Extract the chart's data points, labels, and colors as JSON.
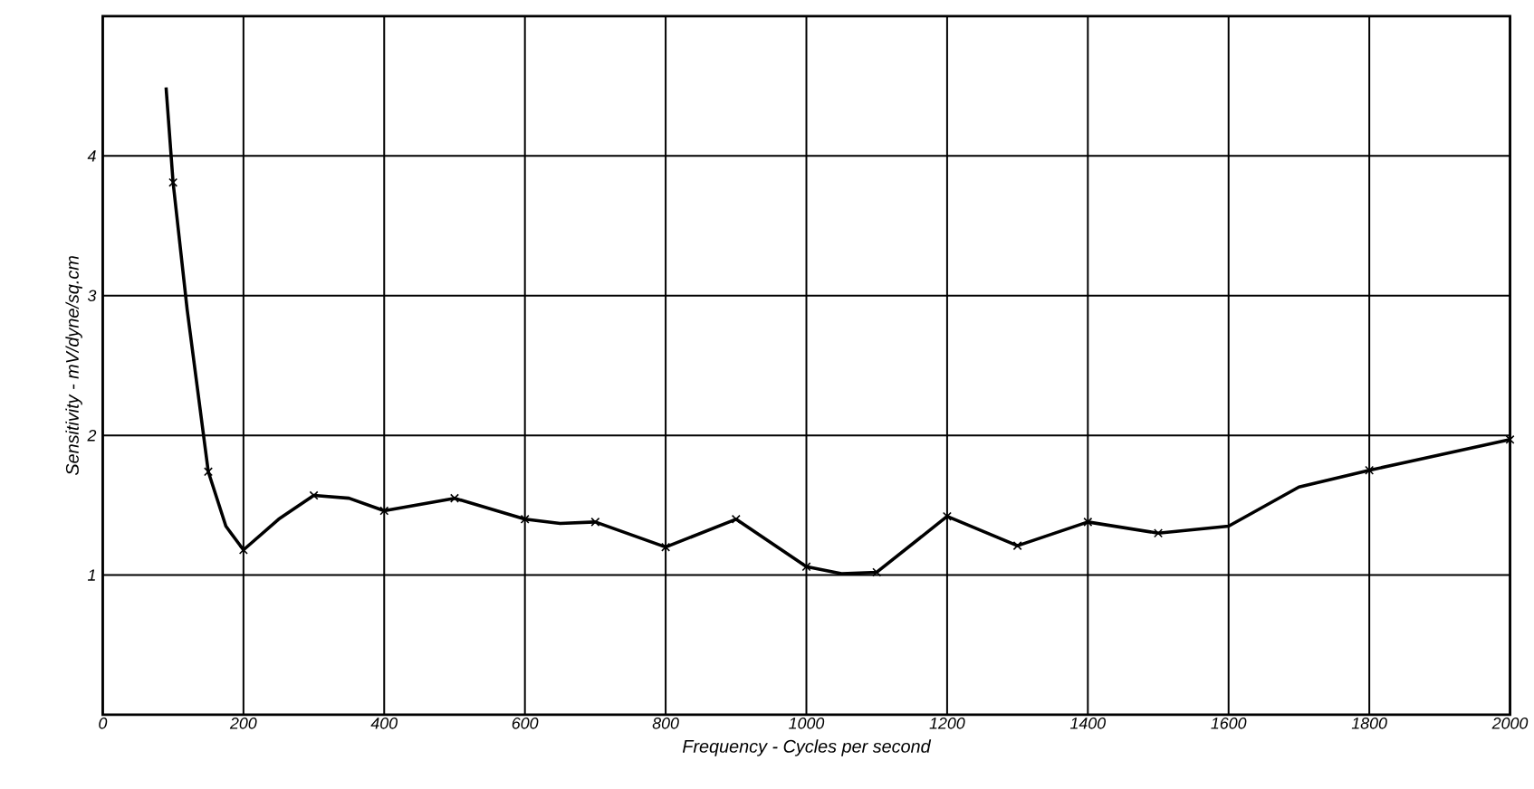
{
  "chart_data": {
    "type": "line",
    "xlabel": "Frequency - Cycles per second",
    "ylabel": "Sensitivity - mV/dyne/sq.cm",
    "xlim": [
      0,
      2000
    ],
    "ylim": [
      0,
      5
    ],
    "xticks": [
      0,
      200,
      400,
      600,
      800,
      1000,
      1200,
      1400,
      1600,
      1800,
      2000
    ],
    "yticks": [
      1,
      2,
      3,
      4
    ],
    "grid": true,
    "line_style": "solid",
    "series": [
      {
        "color": "#000000",
        "marker": "none",
        "x": [
          90,
          100,
          120,
          150,
          175,
          200,
          250,
          300,
          350,
          400,
          500,
          600,
          650,
          700,
          800,
          900,
          1000,
          1050,
          1100,
          1200,
          1300,
          1400,
          1500,
          1600,
          1700,
          1800,
          2000
        ],
        "values": [
          4.49,
          3.81,
          2.9,
          1.74,
          1.35,
          1.18,
          1.4,
          1.57,
          1.55,
          1.46,
          1.55,
          1.4,
          1.37,
          1.38,
          1.2,
          1.4,
          1.06,
          1.01,
          1.02,
          1.42,
          1.21,
          1.38,
          1.3,
          1.35,
          1.63,
          1.75,
          1.97
        ]
      },
      {
        "type": "scatter",
        "color": "#000000",
        "marker": "cross",
        "x": [
          100,
          150,
          200,
          300,
          400,
          500,
          600,
          700,
          800,
          900,
          1000,
          1100,
          1200,
          1300,
          1400,
          1500,
          1800,
          2000
        ],
        "values": [
          3.81,
          1.74,
          1.18,
          1.57,
          1.46,
          1.55,
          1.4,
          1.38,
          1.2,
          1.4,
          1.06,
          1.02,
          1.42,
          1.21,
          1.38,
          1.3,
          1.75,
          1.97
        ]
      }
    ]
  }
}
